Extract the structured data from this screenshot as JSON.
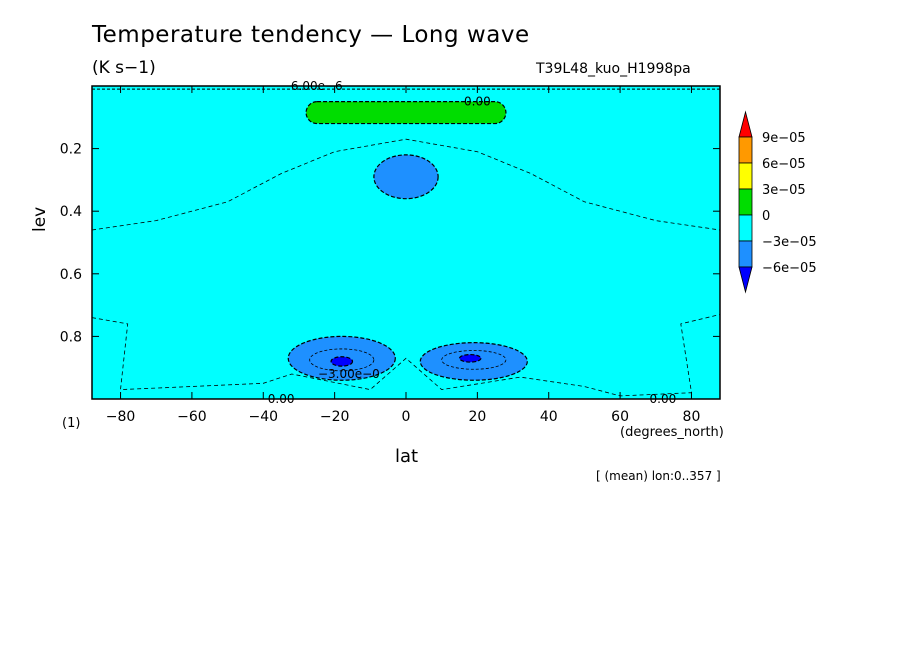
{
  "chart_data": {
    "type": "contour",
    "title": "Temperature tendency — Long wave",
    "units": "(K s−1)",
    "run_label": "T39L48_kuo_H1998pa",
    "xlabel": "lat",
    "xunits": "(degrees_north)",
    "ylabel": "lev",
    "footnote": "[ (mean) lon:0..357 ]",
    "page_label": "(1)",
    "xlim": [
      -88,
      88
    ],
    "ylim": [
      1.0,
      0.0
    ],
    "y_inverted": true,
    "x_ticks": [
      -80,
      -60,
      -40,
      -20,
      0,
      20,
      40,
      60,
      80
    ],
    "x_tick_labels": [
      "−80",
      "−60",
      "−40",
      "−20",
      "0",
      "20",
      "40",
      "60",
      "80"
    ],
    "y_ticks": [
      0.2,
      0.4,
      0.6,
      0.8
    ],
    "y_tick_labels": [
      "0.2",
      "0.4",
      "0.6",
      "0.8"
    ],
    "colorbar": {
      "levels": [
        "9e−05",
        "6e−05",
        "3e−05",
        "0",
        "−3e−05",
        "−6e−05"
      ],
      "colors": [
        "#ff0000",
        "#ff9900",
        "#ffff00",
        "#00dd00",
        "#00ffff",
        "#1e90ff",
        "#0000ff"
      ]
    },
    "background_color": "#00ffff",
    "regions": [
      {
        "name": "positive-band-top",
        "fill": "#00dd00",
        "lat_range": [
          -28,
          28
        ],
        "lev_range": [
          0.05,
          0.12
        ]
      },
      {
        "name": "negative-cell-upper",
        "fill": "#1e90ff",
        "center": [
          0,
          0.29
        ],
        "lat_halfwidth": 9,
        "lev_halfwidth": 0.07
      },
      {
        "name": "negative-cell-lower-south",
        "fill": "#1e90ff",
        "center": [
          -18,
          0.87
        ],
        "lat_halfwidth": 15,
        "lev_halfwidth": 0.07
      },
      {
        "name": "negative-cell-lower-north",
        "fill": "#1e90ff",
        "center": [
          19,
          0.88
        ],
        "lat_halfwidth": 15,
        "lev_halfwidth": 0.06
      },
      {
        "name": "core-south",
        "fill": "#0000ff",
        "center": [
          -18,
          0.88
        ],
        "lat_halfwidth": 3,
        "lev_halfwidth": 0.015
      },
      {
        "name": "core-north",
        "fill": "#0000ff",
        "center": [
          18,
          0.87
        ],
        "lat_halfwidth": 3,
        "lev_halfwidth": 0.012
      }
    ],
    "contour_labels": [
      {
        "text": "0.00",
        "lat": 20,
        "lev": 0.05
      },
      {
        "text": "6.00e−6",
        "lat": -25,
        "lev": 0.0
      },
      {
        "text": "−3.00e−0",
        "lat": -16,
        "lev": 0.92
      },
      {
        "text": "0.00",
        "lat": -35,
        "lev": 1.0
      },
      {
        "text": "0.00",
        "lat": 72,
        "lev": 1.0
      }
    ]
  }
}
